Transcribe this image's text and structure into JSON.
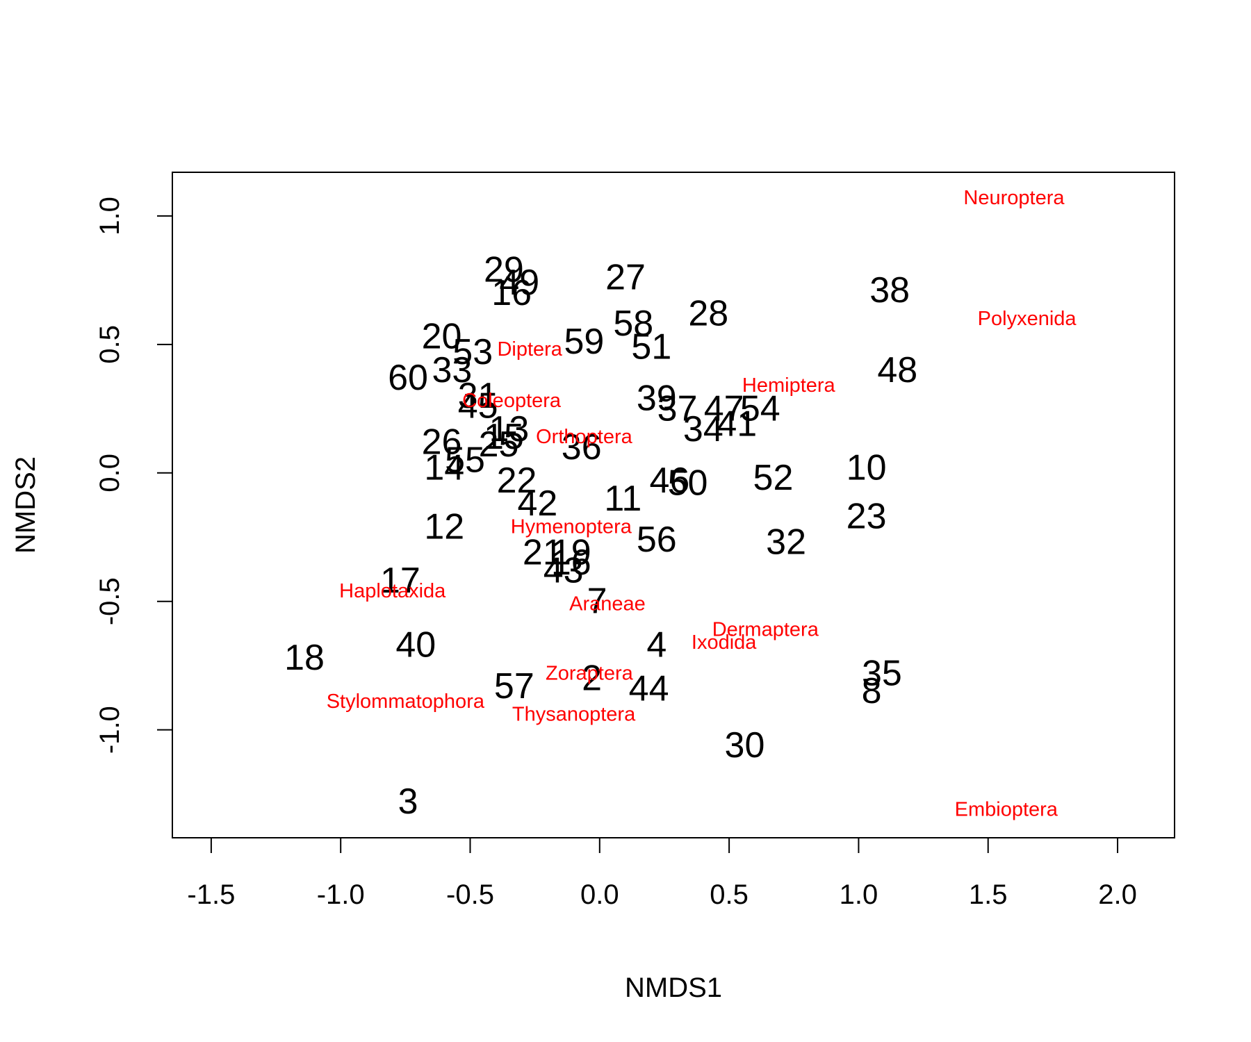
{
  "chart_data": {
    "type": "scatter",
    "title": "",
    "xlabel": "NMDS1",
    "ylabel": "NMDS2",
    "xlim": [
      -1.65,
      2.22
    ],
    "ylim": [
      -1.42,
      1.17
    ],
    "x_ticks": [
      -1.5,
      -1.0,
      -0.5,
      0.0,
      0.5,
      1.0,
      1.5,
      2.0
    ],
    "x_tick_labels": [
      "-1.5",
      "-1.0",
      "-0.5",
      "0.0",
      "0.5",
      "1.0",
      "1.5",
      "2.0"
    ],
    "y_ticks": [
      -1.0,
      -0.5,
      0.0,
      0.5,
      1.0
    ],
    "y_tick_labels": [
      "-1.0",
      "-0.5",
      "0.0",
      "0.5",
      "1.0"
    ],
    "grid": false,
    "colors": {
      "sites": "#000000",
      "species": "#ff0000",
      "axis": "#000000"
    },
    "series": [
      {
        "points": [
          {
            "label": "29",
            "x": -0.37,
            "y": 0.79
          },
          {
            "label": "49",
            "x": -0.31,
            "y": 0.74
          },
          {
            "label": "16",
            "x": -0.34,
            "y": 0.7
          },
          {
            "label": "27",
            "x": 0.1,
            "y": 0.76
          },
          {
            "label": "38",
            "x": 1.12,
            "y": 0.71
          },
          {
            "label": "58",
            "x": 0.13,
            "y": 0.58
          },
          {
            "label": "28",
            "x": 0.42,
            "y": 0.62
          },
          {
            "label": "20",
            "x": -0.61,
            "y": 0.53
          },
          {
            "label": "59",
            "x": -0.06,
            "y": 0.51
          },
          {
            "label": "51",
            "x": 0.2,
            "y": 0.49
          },
          {
            "label": "53",
            "x": -0.49,
            "y": 0.47
          },
          {
            "label": "33",
            "x": -0.57,
            "y": 0.4
          },
          {
            "label": "60",
            "x": -0.74,
            "y": 0.37
          },
          {
            "label": "48",
            "x": 1.15,
            "y": 0.4
          },
          {
            "label": "31",
            "x": -0.47,
            "y": 0.3
          },
          {
            "label": "45",
            "x": -0.47,
            "y": 0.26
          },
          {
            "label": "39",
            "x": 0.22,
            "y": 0.29
          },
          {
            "label": "37",
            "x": 0.3,
            "y": 0.25
          },
          {
            "label": "47",
            "x": 0.48,
            "y": 0.25
          },
          {
            "label": "54",
            "x": 0.62,
            "y": 0.25
          },
          {
            "label": "34",
            "x": 0.4,
            "y": 0.17
          },
          {
            "label": "41",
            "x": 0.53,
            "y": 0.19
          },
          {
            "label": "13",
            "x": -0.35,
            "y": 0.17
          },
          {
            "label": "36",
            "x": -0.07,
            "y": 0.1
          },
          {
            "label": "26",
            "x": -0.61,
            "y": 0.12
          },
          {
            "label": "25",
            "x": -0.39,
            "y": 0.11
          },
          {
            "label": "15",
            "x": -0.37,
            "y": 0.14
          },
          {
            "label": "55",
            "x": -0.52,
            "y": 0.05
          },
          {
            "label": "14",
            "x": -0.6,
            "y": 0.02
          },
          {
            "label": "10",
            "x": 1.03,
            "y": 0.02
          },
          {
            "label": "22",
            "x": -0.32,
            "y": -0.03
          },
          {
            "label": "46",
            "x": 0.27,
            "y": -0.03
          },
          {
            "label": "50",
            "x": 0.34,
            "y": -0.04
          },
          {
            "label": "52",
            "x": 0.67,
            "y": -0.02
          },
          {
            "label": "11",
            "x": 0.09,
            "y": -0.1
          },
          {
            "label": "42",
            "x": -0.24,
            "y": -0.12
          },
          {
            "label": "12",
            "x": -0.6,
            "y": -0.21
          },
          {
            "label": "23",
            "x": 1.03,
            "y": -0.17
          },
          {
            "label": "56",
            "x": 0.22,
            "y": -0.26
          },
          {
            "label": "32",
            "x": 0.72,
            "y": -0.27
          },
          {
            "label": "21",
            "x": -0.22,
            "y": -0.31
          },
          {
            "label": "19",
            "x": -0.11,
            "y": -0.31
          },
          {
            "label": "16",
            "x": -0.11,
            "y": -0.35
          },
          {
            "label": "43",
            "x": -0.14,
            "y": -0.38
          },
          {
            "label": "17",
            "x": -0.77,
            "y": -0.42
          },
          {
            "label": "7",
            "x": -0.01,
            "y": -0.5
          },
          {
            "label": "40",
            "x": -0.71,
            "y": -0.67
          },
          {
            "label": "18",
            "x": -1.14,
            "y": -0.72
          },
          {
            "label": "4",
            "x": 0.22,
            "y": -0.67
          },
          {
            "label": "35",
            "x": 1.09,
            "y": -0.78
          },
          {
            "label": "2",
            "x": -0.03,
            "y": -0.8
          },
          {
            "label": "57",
            "x": -0.33,
            "y": -0.83
          },
          {
            "label": "44",
            "x": 0.19,
            "y": -0.84
          },
          {
            "label": "8",
            "x": 1.05,
            "y": -0.85
          },
          {
            "label": "30",
            "x": 0.56,
            "y": -1.06
          },
          {
            "label": "3",
            "x": -0.74,
            "y": -1.28
          }
        ]
      },
      {
        "points": [
          {
            "label": "Neuroptera",
            "x": 1.6,
            "y": 1.07
          },
          {
            "label": "Polyxenida",
            "x": 1.65,
            "y": 0.6
          },
          {
            "label": "Diptera",
            "x": -0.27,
            "y": 0.48
          },
          {
            "label": "Hemiptera",
            "x": 0.73,
            "y": 0.34
          },
          {
            "label": "Coleoptera",
            "x": -0.34,
            "y": 0.28
          },
          {
            "label": "Orthoptera",
            "x": -0.06,
            "y": 0.14
          },
          {
            "label": "Hymenoptera",
            "x": -0.11,
            "y": -0.21
          },
          {
            "label": "Haplotaxida",
            "x": -0.8,
            "y": -0.46
          },
          {
            "label": "Araneae",
            "x": 0.03,
            "y": -0.51
          },
          {
            "label": "Dermaptera",
            "x": 0.64,
            "y": -0.61
          },
          {
            "label": "Ixodida",
            "x": 0.48,
            "y": -0.66
          },
          {
            "label": "Zoraptera",
            "x": -0.04,
            "y": -0.78
          },
          {
            "label": "Stylommatophora",
            "x": -0.75,
            "y": -0.89
          },
          {
            "label": "Thysanoptera",
            "x": -0.1,
            "y": -0.94
          },
          {
            "label": "Embioptera",
            "x": 1.57,
            "y": -1.31
          }
        ]
      }
    ]
  }
}
